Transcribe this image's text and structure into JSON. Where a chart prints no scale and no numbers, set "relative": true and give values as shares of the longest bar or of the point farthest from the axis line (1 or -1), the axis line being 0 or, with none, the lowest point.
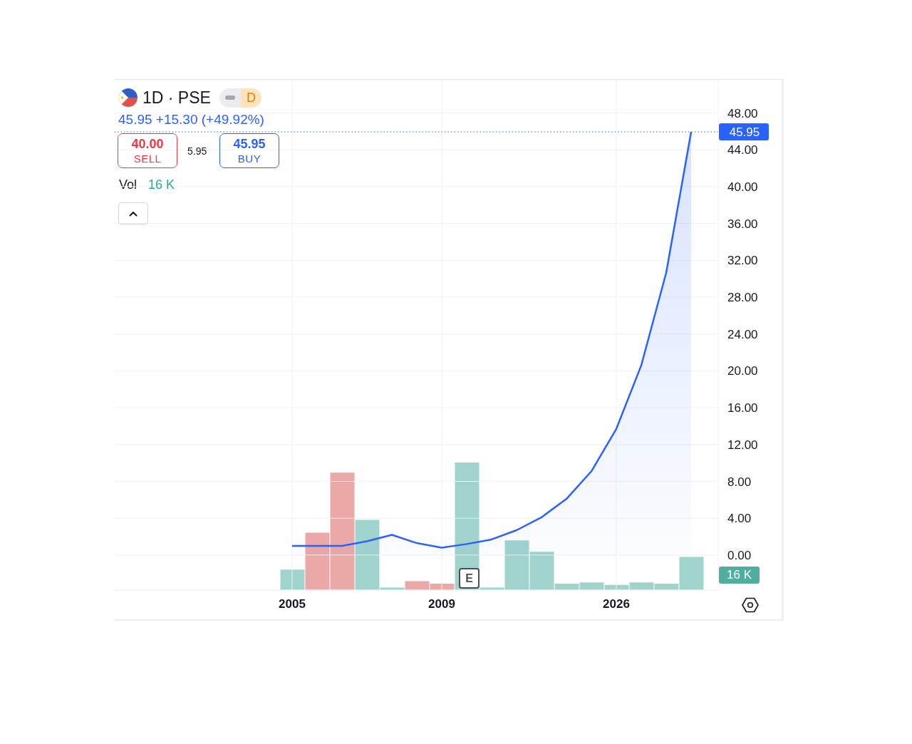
{
  "chart_data": [
    {
      "type": "area",
      "title": "1D · PSE",
      "subtitle": "45.95 +15.30 (+49.92%)",
      "tick_labels": "y",
      "categories": [
        "2005",
        null,
        null,
        null,
        null,
        null,
        "2009",
        null,
        null,
        null,
        null,
        null,
        null,
        "2026",
        null,
        null,
        null
      ],
      "color": "#2962ff",
      "values": [
        1.0,
        1.0,
        1.0,
        1.5,
        2.2,
        1.3,
        0.8,
        1.2,
        1.7,
        2.7,
        4.1,
        6.1,
        9.1,
        13.7,
        20.6,
        30.65,
        45.95
      ],
      "ylim": [
        -3.8,
        51.6
      ],
      "yticks": [
        {
          "value": 0,
          "label": "0.00"
        },
        {
          "value": 4,
          "label": "4.00"
        },
        {
          "value": 8,
          "label": "8.00"
        },
        {
          "value": 12,
          "label": "12.00"
        },
        {
          "value": 16,
          "label": "16.00"
        },
        {
          "value": 20,
          "label": "20.00"
        },
        {
          "value": 24,
          "label": "24.00"
        },
        {
          "value": 28,
          "label": "28.00"
        },
        {
          "value": 32,
          "label": "32.00"
        },
        {
          "value": 36,
          "label": "36.00"
        },
        {
          "value": 40,
          "label": "40.00"
        },
        {
          "value": 44,
          "label": "44.00"
        },
        {
          "value": 48,
          "label": "48.00"
        }
      ],
      "grid": true,
      "ref_lines": [
        {
          "axis": "y",
          "value": 45.95,
          "label": "45.95",
          "color": "#2962ff",
          "line_style": "dotted"
        }
      ],
      "annotations": [
        "40.00",
        "SELL",
        "5.95",
        "45.95",
        "BUY",
        "E",
        "D",
        "16 K",
        "16 K"
      ]
    },
    {
      "type": "bar",
      "relative": true,
      "categories": [
        "2005",
        null,
        null,
        null,
        null,
        null,
        "2009",
        null,
        null,
        null,
        null,
        null,
        null,
        "2026",
        null,
        null,
        null
      ],
      "colors": [
        "#9fd3cc",
        "#eaa8a6",
        "#eaa8a6",
        "#9fd3cc",
        "#9fd3cc",
        "#eaa8a6",
        "#eaa8a6",
        "#9fd3cc",
        "#9fd3cc",
        "#9fd3cc",
        "#9fd3cc",
        "#9fd3cc",
        "#9fd3cc",
        "#9fd3cc",
        "#9fd3cc",
        "#9fd3cc",
        "#9fd3cc"
      ],
      "values": [
        0.16,
        0.45,
        0.92,
        0.55,
        0.02,
        0.07,
        0.05,
        1,
        0.02,
        0.39,
        0.3,
        0.05,
        0.06,
        0.04,
        0.06,
        0.05,
        0.26
      ],
      "annotations": [
        "Vol"
      ]
    }
  ]
}
